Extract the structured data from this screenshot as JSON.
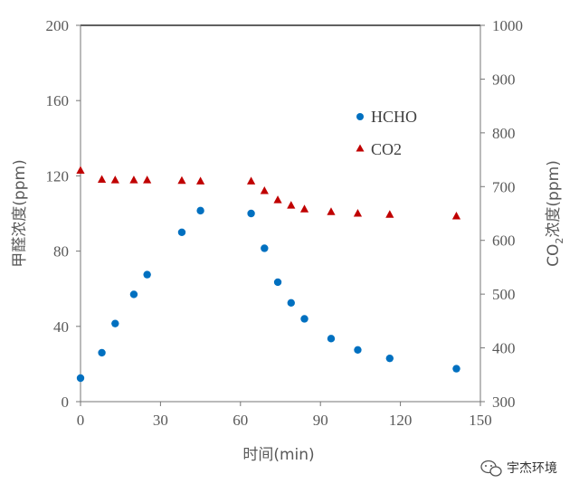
{
  "chart_data": {
    "type": "scatter",
    "title": "",
    "xlabel": "时间(min)",
    "ylabel_left": "甲醛浓度(ppm)",
    "ylabel_right_parts": [
      "CO",
      "2",
      "浓度(ppm)"
    ],
    "xlim": [
      0,
      150
    ],
    "ylim_left": [
      0,
      200
    ],
    "ylim_right": [
      300,
      1000
    ],
    "x_ticks": [
      "0",
      "30",
      "60",
      "90",
      "120",
      "150"
    ],
    "y_left_ticks": [
      "0",
      "40",
      "80",
      "120",
      "160",
      "200"
    ],
    "y_right_ticks": [
      "300",
      "400",
      "500",
      "600",
      "700",
      "800",
      "900",
      "1000"
    ],
    "grid": false,
    "legend_position": "upper-right",
    "series": [
      {
        "name": "HCHO",
        "axis": "left",
        "marker": "circle",
        "color": "#0070C0",
        "x": [
          0,
          8,
          13,
          20,
          25,
          38,
          45,
          64,
          69,
          74,
          79,
          84,
          94,
          104,
          116,
          141
        ],
        "y": [
          12.5,
          26,
          41.5,
          57,
          67.5,
          90,
          101.5,
          100,
          81.5,
          63.5,
          52.5,
          44,
          33.5,
          27.5,
          23,
          17.5
        ]
      },
      {
        "name": "CO2",
        "axis": "right",
        "marker": "triangle",
        "color": "#C00000",
        "x": [
          0,
          8,
          13,
          20,
          25,
          38,
          45,
          64,
          69,
          74,
          79,
          84,
          94,
          104,
          116,
          141
        ],
        "y": [
          730,
          713,
          712,
          712,
          712,
          711,
          710,
          710,
          692,
          675,
          665,
          658,
          653,
          650,
          648,
          645
        ]
      }
    ]
  },
  "watermark": {
    "text": "宇杰环境",
    "icon": "wechat-icon"
  }
}
